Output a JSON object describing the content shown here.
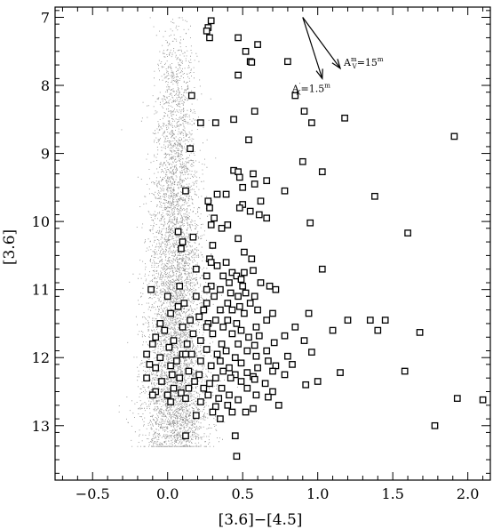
{
  "chart_data": {
    "type": "scatter",
    "title": "",
    "xlabel": "[3.6]−[4.5]",
    "ylabel": "[3.6]",
    "xlim": [
      -0.75,
      2.15
    ],
    "ylim": [
      13.8,
      6.85
    ],
    "y_inverted": true,
    "x_ticks": [
      -0.5,
      0.0,
      0.5,
      1.0,
      1.5,
      2.0
    ],
    "x_tick_labels": [
      "−0.5",
      "0.0",
      "0.5",
      "1.0",
      "1.5",
      "2.0"
    ],
    "y_ticks": [
      7,
      8,
      9,
      10,
      11,
      12,
      13
    ],
    "y_tick_labels": [
      "7",
      "8",
      "9",
      "10",
      "11",
      "12",
      "13"
    ],
    "grid": false,
    "annotations": [
      {
        "label_main": "A",
        "label_sup": "m",
        "label_sub": "V",
        "label_tail": "=15",
        "label_tail_sup": "m",
        "from": [
          0.9,
          7.0
        ],
        "to": [
          1.15,
          7.75
        ]
      },
      {
        "label_main": "A",
        "label_sup": "′",
        "label_sub": "K",
        "label_tail": "=1.5",
        "label_tail_sup": "m",
        "from": [
          0.9,
          7.0
        ],
        "to": [
          1.03,
          7.9
        ]
      }
    ],
    "series": [
      {
        "marker": "dot",
        "color": "#8a8a8a",
        "distribution": {
          "count": 6000,
          "x_center": 0.05,
          "x_spread": 0.11,
          "y_min": 7.0,
          "y_max": 13.3,
          "y_peak": 12.0
        }
      },
      {
        "marker": "open-square",
        "color": "#000000",
        "points": [
          [
            0.29,
            7.05
          ],
          [
            0.27,
            7.15
          ],
          [
            0.26,
            7.2
          ],
          [
            0.28,
            7.3
          ],
          [
            0.47,
            7.3
          ],
          [
            0.6,
            7.4
          ],
          [
            0.52,
            7.5
          ],
          [
            0.55,
            7.65
          ],
          [
            0.56,
            7.66
          ],
          [
            0.8,
            7.65
          ],
          [
            0.47,
            7.85
          ],
          [
            0.16,
            8.15
          ],
          [
            0.85,
            8.15
          ],
          [
            0.58,
            8.38
          ],
          [
            0.91,
            8.38
          ],
          [
            0.44,
            8.5
          ],
          [
            0.22,
            8.55
          ],
          [
            0.32,
            8.55
          ],
          [
            0.96,
            8.55
          ],
          [
            1.18,
            8.48
          ],
          [
            1.91,
            8.75
          ],
          [
            0.54,
            8.8
          ],
          [
            0.15,
            8.93
          ],
          [
            0.9,
            9.12
          ],
          [
            0.44,
            9.25
          ],
          [
            0.47,
            9.27
          ],
          [
            0.57,
            9.3
          ],
          [
            0.48,
            9.35
          ],
          [
            0.66,
            9.4
          ],
          [
            1.03,
            9.27
          ],
          [
            0.58,
            9.45
          ],
          [
            0.5,
            9.5
          ],
          [
            0.78,
            9.55
          ],
          [
            0.12,
            9.55
          ],
          [
            0.33,
            9.6
          ],
          [
            0.39,
            9.6
          ],
          [
            1.38,
            9.63
          ],
          [
            0.62,
            9.7
          ],
          [
            0.27,
            9.7
          ],
          [
            0.5,
            9.75
          ],
          [
            0.28,
            9.8
          ],
          [
            0.48,
            9.8
          ],
          [
            0.55,
            9.85
          ],
          [
            0.31,
            9.95
          ],
          [
            0.61,
            9.9
          ],
          [
            0.66,
            9.95
          ],
          [
            0.29,
            10.05
          ],
          [
            0.4,
            10.05
          ],
          [
            0.95,
            10.02
          ],
          [
            0.36,
            10.1
          ],
          [
            0.07,
            10.15
          ],
          [
            0.17,
            10.23
          ],
          [
            0.47,
            10.25
          ],
          [
            0.1,
            10.3
          ],
          [
            1.6,
            10.17
          ],
          [
            0.3,
            10.35
          ],
          [
            0.09,
            10.4
          ],
          [
            0.51,
            10.45
          ],
          [
            0.28,
            10.55
          ],
          [
            0.56,
            10.55
          ],
          [
            0.39,
            10.6
          ],
          [
            0.29,
            10.6
          ],
          [
            0.33,
            10.65
          ],
          [
            0.19,
            10.7
          ],
          [
            0.43,
            10.75
          ],
          [
            0.46,
            10.8
          ],
          [
            1.03,
            10.7
          ],
          [
            0.37,
            10.8
          ],
          [
            0.49,
            10.85
          ],
          [
            0.51,
            10.75
          ],
          [
            0.57,
            10.72
          ],
          [
            0.26,
            10.8
          ],
          [
            0.08,
            10.95
          ],
          [
            0.29,
            10.95
          ],
          [
            0.41,
            10.9
          ],
          [
            0.5,
            10.95
          ],
          [
            0.62,
            10.9
          ],
          [
            0.68,
            10.95
          ],
          [
            0.72,
            11.0
          ],
          [
            0.26,
            11.0
          ],
          [
            0.35,
            11.0
          ],
          [
            0.42,
            11.05
          ],
          [
            -0.11,
            11.0
          ],
          [
            0.0,
            11.1
          ],
          [
            0.19,
            11.1
          ],
          [
            0.31,
            11.1
          ],
          [
            0.47,
            11.1
          ],
          [
            0.52,
            11.05
          ],
          [
            0.58,
            11.1
          ],
          [
            0.55,
            11.2
          ],
          [
            0.4,
            11.2
          ],
          [
            0.26,
            11.2
          ],
          [
            0.11,
            11.2
          ],
          [
            0.07,
            11.25
          ],
          [
            0.24,
            11.3
          ],
          [
            0.35,
            11.3
          ],
          [
            0.43,
            11.3
          ],
          [
            0.51,
            11.35
          ],
          [
            0.6,
            11.3
          ],
          [
            0.48,
            11.25
          ],
          [
            0.7,
            11.35
          ],
          [
            0.94,
            11.35
          ],
          [
            0.02,
            11.35
          ],
          [
            0.21,
            11.4
          ],
          [
            0.15,
            11.45
          ],
          [
            0.32,
            11.45
          ],
          [
            0.4,
            11.45
          ],
          [
            0.66,
            11.45
          ],
          [
            0.27,
            11.5
          ],
          [
            0.46,
            11.5
          ],
          [
            1.2,
            11.45
          ],
          [
            1.45,
            11.45
          ],
          [
            -0.05,
            11.5
          ],
          [
            0.1,
            11.55
          ],
          [
            0.26,
            11.55
          ],
          [
            0.37,
            11.55
          ],
          [
            0.49,
            11.6
          ],
          [
            0.59,
            11.55
          ],
          [
            0.85,
            11.55
          ],
          [
            1.35,
            11.45
          ],
          [
            1.1,
            11.6
          ],
          [
            1.4,
            11.6
          ],
          [
            1.68,
            11.63
          ],
          [
            -0.02,
            11.6
          ],
          [
            0.17,
            11.65
          ],
          [
            0.3,
            11.65
          ],
          [
            0.43,
            11.65
          ],
          [
            0.54,
            11.7
          ],
          [
            0.61,
            11.68
          ],
          [
            0.78,
            11.68
          ],
          [
            0.04,
            11.75
          ],
          [
            -0.08,
            11.7
          ],
          [
            0.13,
            11.8
          ],
          [
            0.22,
            11.75
          ],
          [
            0.36,
            11.8
          ],
          [
            0.47,
            11.8
          ],
          [
            0.58,
            11.82
          ],
          [
            0.71,
            11.78
          ],
          [
            0.91,
            11.75
          ],
          [
            -0.1,
            11.8
          ],
          [
            0.01,
            11.85
          ],
          [
            0.26,
            11.88
          ],
          [
            0.39,
            11.9
          ],
          [
            0.53,
            11.9
          ],
          [
            0.66,
            11.9
          ],
          [
            0.96,
            11.92
          ],
          [
            -0.14,
            11.95
          ],
          [
            0.1,
            11.95
          ],
          [
            0.12,
            11.95
          ],
          [
            0.16,
            11.95
          ],
          [
            0.33,
            11.95
          ],
          [
            0.45,
            12.0
          ],
          [
            0.59,
            11.98
          ],
          [
            0.8,
            11.98
          ],
          [
            -0.05,
            12.0
          ],
          [
            0.06,
            12.05
          ],
          [
            0.22,
            12.05
          ],
          [
            0.35,
            12.05
          ],
          [
            0.49,
            12.08
          ],
          [
            0.67,
            12.05
          ],
          [
            0.83,
            12.1
          ],
          [
            -0.12,
            12.1
          ],
          [
            0.02,
            12.12
          ],
          [
            0.29,
            12.12
          ],
          [
            0.41,
            12.15
          ],
          [
            0.6,
            12.15
          ],
          [
            0.72,
            12.12
          ],
          [
            -0.08,
            12.15
          ],
          [
            0.14,
            12.2
          ],
          [
            0.37,
            12.2
          ],
          [
            0.53,
            12.22
          ],
          [
            0.7,
            12.2
          ],
          [
            1.15,
            12.22
          ],
          [
            1.58,
            12.2
          ],
          [
            0.03,
            12.25
          ],
          [
            0.21,
            12.25
          ],
          [
            0.45,
            12.25
          ],
          [
            0.57,
            12.28
          ],
          [
            0.78,
            12.25
          ],
          [
            -0.14,
            12.3
          ],
          [
            0.08,
            12.3
          ],
          [
            0.32,
            12.3
          ],
          [
            0.42,
            12.3
          ],
          [
            0.58,
            12.32
          ],
          [
            1.0,
            12.35
          ],
          [
            -0.04,
            12.35
          ],
          [
            0.18,
            12.35
          ],
          [
            0.28,
            12.38
          ],
          [
            0.49,
            12.35
          ],
          [
            0.65,
            12.38
          ],
          [
            0.92,
            12.4
          ],
          [
            0.04,
            12.45
          ],
          [
            0.14,
            12.45
          ],
          [
            0.24,
            12.45
          ],
          [
            0.36,
            12.45
          ],
          [
            0.53,
            12.45
          ],
          [
            0.7,
            12.5
          ],
          [
            -0.08,
            12.5
          ],
          [
            0.0,
            12.55
          ],
          [
            0.09,
            12.52
          ],
          [
            0.27,
            12.55
          ],
          [
            0.41,
            12.55
          ],
          [
            0.59,
            12.55
          ],
          [
            -0.1,
            12.55
          ],
          [
            0.12,
            12.6
          ],
          [
            0.34,
            12.6
          ],
          [
            0.47,
            12.62
          ],
          [
            0.67,
            12.58
          ],
          [
            1.93,
            12.6
          ],
          [
            2.1,
            12.62
          ],
          [
            0.02,
            12.65
          ],
          [
            0.22,
            12.65
          ],
          [
            0.32,
            12.72
          ],
          [
            0.4,
            12.7
          ],
          [
            0.57,
            12.75
          ],
          [
            0.74,
            12.7
          ],
          [
            0.3,
            12.8
          ],
          [
            0.43,
            12.8
          ],
          [
            0.52,
            12.8
          ],
          [
            0.19,
            12.85
          ],
          [
            0.35,
            12.9
          ],
          [
            1.78,
            13.0
          ],
          [
            0.12,
            13.15
          ],
          [
            0.45,
            13.15
          ],
          [
            0.46,
            13.45
          ]
        ]
      }
    ]
  }
}
